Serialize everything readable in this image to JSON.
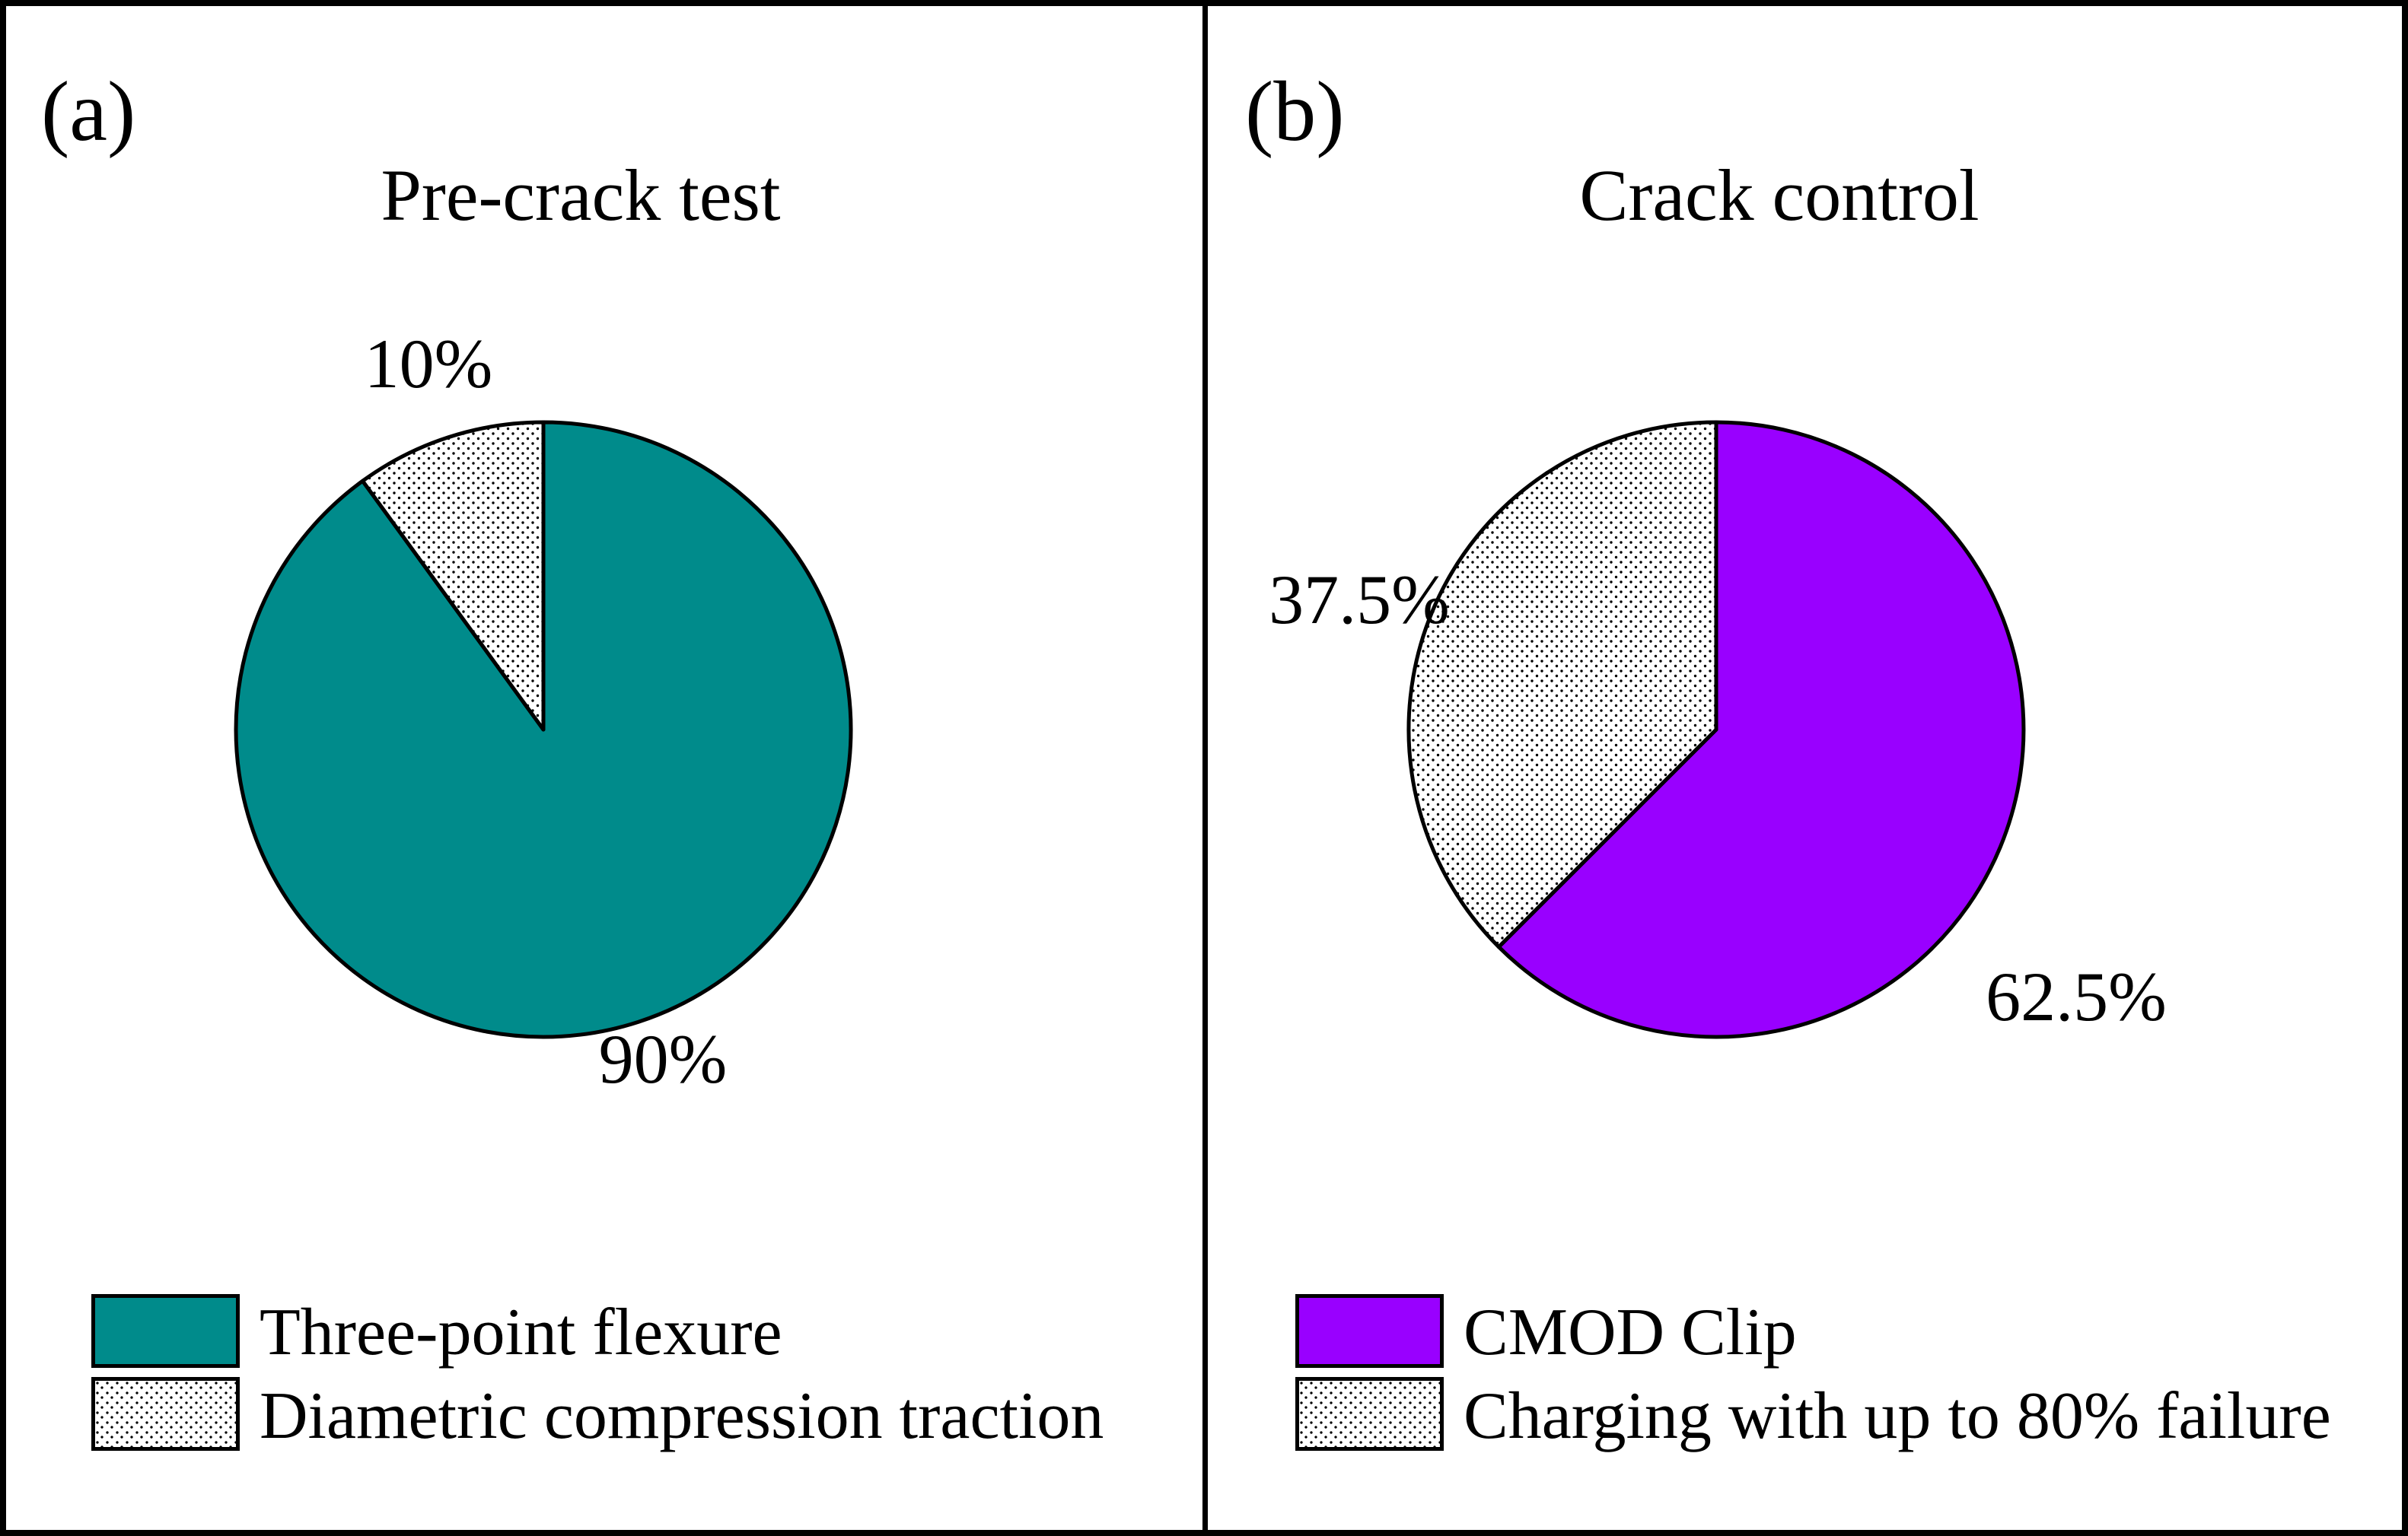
{
  "figure_tags": [
    "(a)",
    "(b)"
  ],
  "chart_data": [
    {
      "type": "pie",
      "title": "Pre-crack test",
      "labels": [
        "Three-point flexure",
        "Diametric compression traction"
      ],
      "values": [
        90,
        10
      ],
      "data_labels": [
        "90%",
        "10%"
      ],
      "colors": [
        "#008B8B",
        "#FFFFFF"
      ],
      "patterns": [
        false,
        true
      ],
      "start_angle": "top",
      "direction": "clockwise",
      "legend_position": "bottom-left"
    },
    {
      "type": "pie",
      "title": "Crack control",
      "labels": [
        "CMOD Clip",
        "Charging with up to 80% failure"
      ],
      "values": [
        62.5,
        37.5
      ],
      "data_labels": [
        "62.5%",
        "37.5%"
      ],
      "colors": [
        "#9900FF",
        "#FFFFFF"
      ],
      "patterns": [
        false,
        true
      ],
      "start_angle": "top",
      "direction": "clockwise",
      "legend_position": "bottom-left"
    }
  ]
}
